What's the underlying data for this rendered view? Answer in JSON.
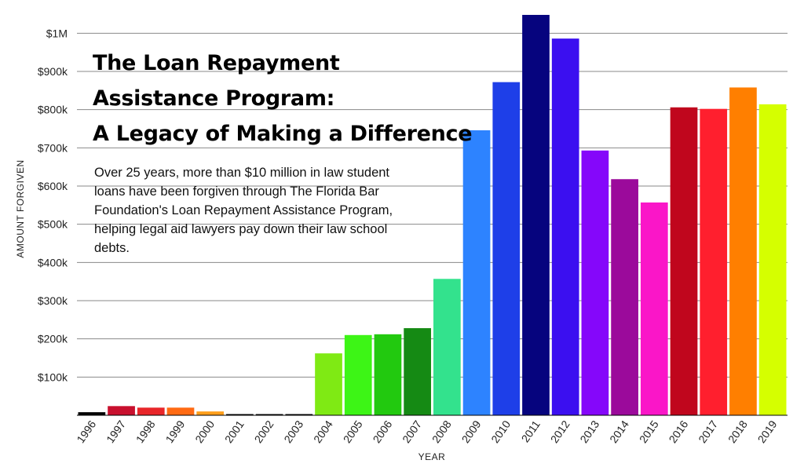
{
  "title_lines": [
    "The Loan Repayment",
    "Assistance Program:",
    "A Legacy of Making a Difference"
  ],
  "description": "Over 25 years, more than $10 million in law student loans have been forgiven through The Florida Bar Foundation's Loan Repayment Assistance Program, helping legal aid lawyers pay down their law school debts.",
  "chart_data": {
    "type": "bar",
    "title": "The Loan Repayment Assistance Program: A Legacy of Making a Difference",
    "xlabel": "YEAR",
    "ylabel": "AMOUNT  FORGIVEN",
    "ylim": [
      0,
      1050000
    ],
    "grid": true,
    "y_ticks": [
      {
        "value": 100000,
        "label": "$100k"
      },
      {
        "value": 200000,
        "label": "$200k"
      },
      {
        "value": 300000,
        "label": "$300k"
      },
      {
        "value": 400000,
        "label": "$400k"
      },
      {
        "value": 500000,
        "label": "$500k"
      },
      {
        "value": 600000,
        "label": "$600k"
      },
      {
        "value": 700000,
        "label": "$700k"
      },
      {
        "value": 800000,
        "label": "$800k"
      },
      {
        "value": 900000,
        "label": "$900k"
      },
      {
        "value": 1000000,
        "label": "$1M"
      }
    ],
    "categories": [
      "1996",
      "1997",
      "1998",
      "1999",
      "2000",
      "2001",
      "2002",
      "2003",
      "2004",
      "2005",
      "2006",
      "2007",
      "2008",
      "2009",
      "2010",
      "2011",
      "2012",
      "2013",
      "2014",
      "2015",
      "2016",
      "2017",
      "2018",
      "2019"
    ],
    "values": [
      8000,
      24000,
      20000,
      20000,
      10000,
      1000,
      1000,
      1000,
      162000,
      210000,
      212000,
      228000,
      357000,
      746000,
      872000,
      1048000,
      986000,
      693000,
      618000,
      557000,
      806000,
      802000,
      858000,
      814000
    ],
    "colors": [
      "#000000",
      "#c8102e",
      "#e8262a",
      "#ff6a13",
      "#ff9e1b",
      "#000000",
      "#000000",
      "#000000",
      "#7fea14",
      "#3df516",
      "#22c90f",
      "#158a14",
      "#33e28d",
      "#2d83ff",
      "#1e3fe8",
      "#06047e",
      "#3b0ff0",
      "#8507fa",
      "#9b0a9b",
      "#fa16c8",
      "#c0061d",
      "#ff1f2e",
      "#ff7f00",
      "#d5ff00"
    ]
  }
}
